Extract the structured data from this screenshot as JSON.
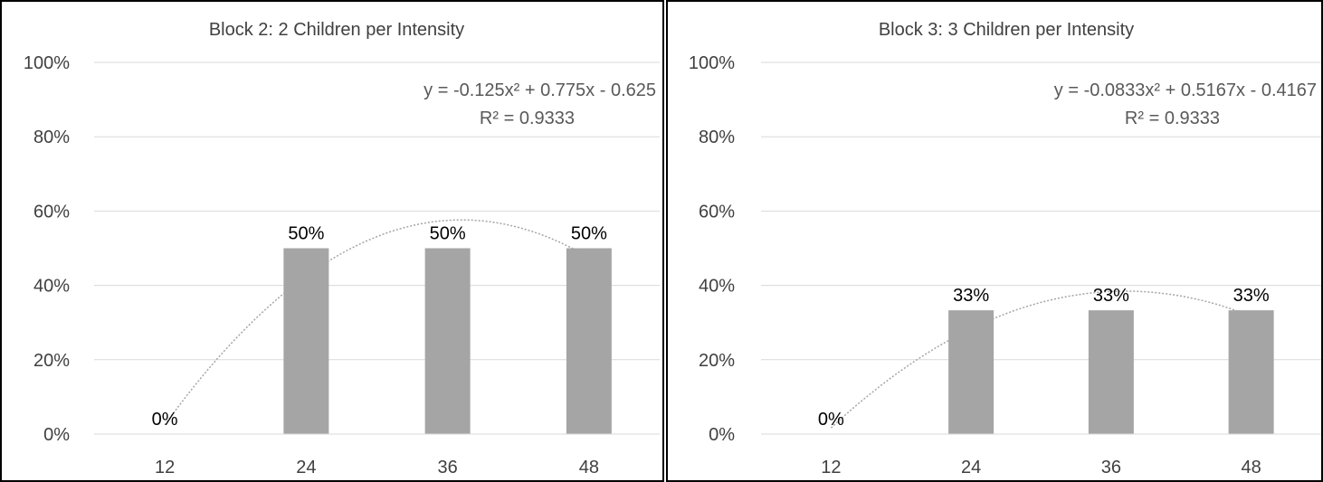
{
  "chart_data": [
    {
      "type": "bar",
      "title": "Block 2: 2 Children per Intensity",
      "categories": [
        "12",
        "24",
        "36",
        "48"
      ],
      "values": [
        0,
        0.5,
        0.5,
        0.5
      ],
      "data_labels": [
        "0%",
        "50%",
        "50%",
        "50%"
      ],
      "ylim": [
        0,
        1
      ],
      "yticks": [
        "0%",
        "20%",
        "40%",
        "60%",
        "80%",
        "100%"
      ],
      "xlabel": "",
      "ylabel": "",
      "grid": true,
      "legend": "none",
      "bar_color": "#a5a5a5",
      "trendline": {
        "type": "polynomial",
        "coefficients": [
          -0.125,
          0.775,
          -0.625
        ],
        "equation": "y = -0.125x² + 0.775x - 0.625",
        "r2": "R² = 0.9333",
        "color": "#a5a5a5"
      }
    },
    {
      "type": "bar",
      "title": "Block 3: 3 Children per Intensity",
      "categories": [
        "12",
        "24",
        "36",
        "48"
      ],
      "values": [
        0,
        0.333,
        0.333,
        0.333
      ],
      "data_labels": [
        "0%",
        "33%",
        "33%",
        "33%"
      ],
      "ylim": [
        0,
        1
      ],
      "yticks": [
        "0%",
        "20%",
        "40%",
        "60%",
        "80%",
        "100%"
      ],
      "xlabel": "",
      "ylabel": "",
      "grid": true,
      "legend": "none",
      "bar_color": "#a5a5a5",
      "trendline": {
        "type": "polynomial",
        "coefficients": [
          -0.0833,
          0.5167,
          -0.4167
        ],
        "equation": "y = -0.0833x² + 0.5167x - 0.4167",
        "r2": "R² = 0.9333",
        "color": "#a5a5a5"
      }
    }
  ]
}
